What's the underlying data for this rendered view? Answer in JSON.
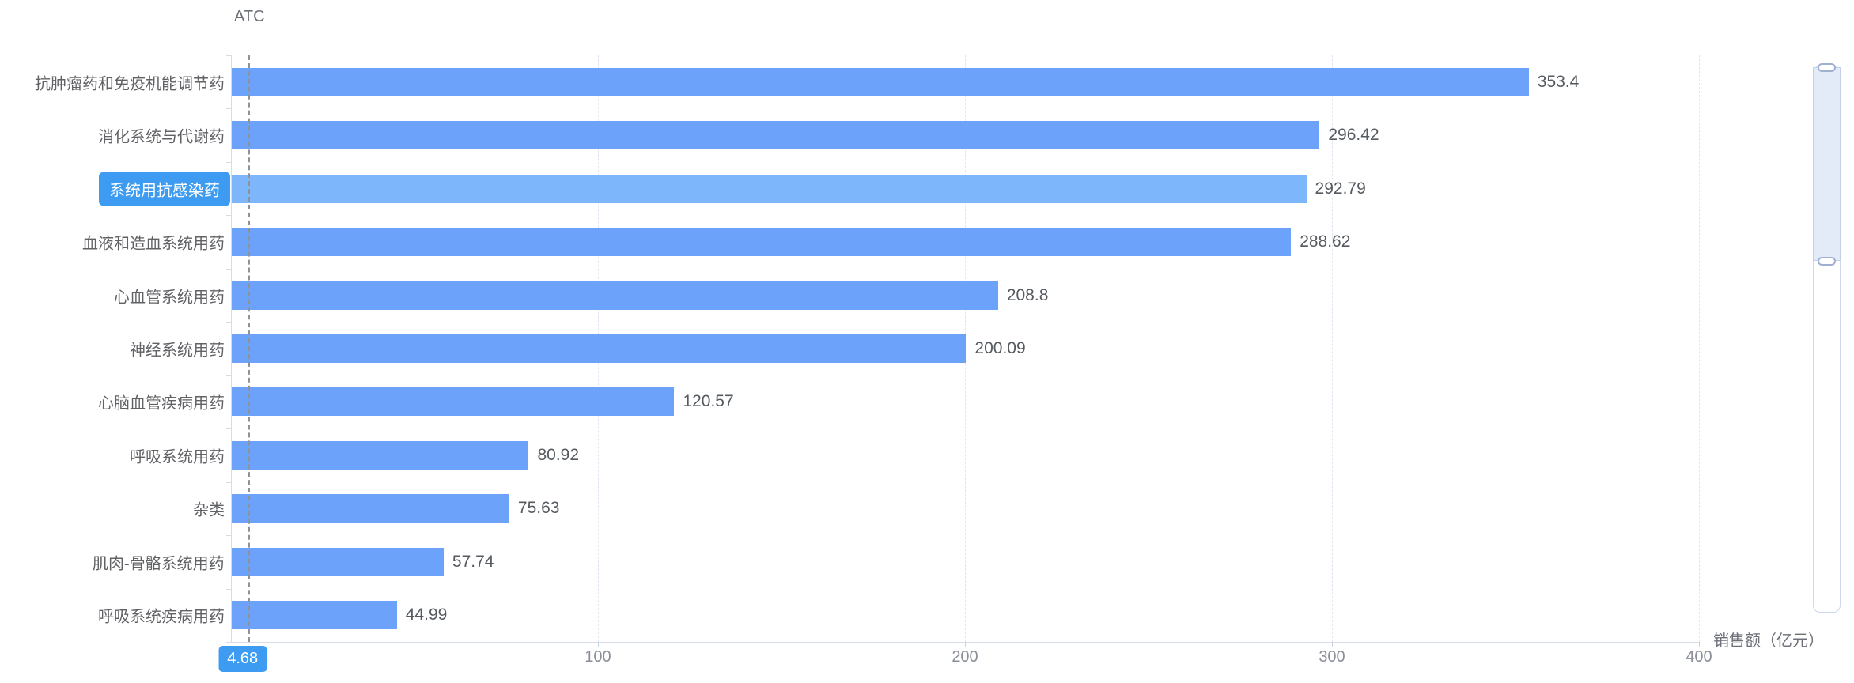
{
  "chart_data": {
    "type": "bar",
    "orientation": "horizontal",
    "title": "ATC",
    "xlabel": "销售额（亿元）",
    "categories": [
      "抗肿瘤药和免疫机能调节药",
      "消化系统与代谢药",
      "系统用抗感染药",
      "血液和造血系统用药",
      "心血管系统用药",
      "神经系统用药",
      "心脑血管疾病用药",
      "呼吸系统用药",
      "杂类",
      "肌肉-骨骼系统用药",
      "呼吸系统疾病用药"
    ],
    "values": [
      353.4,
      296.42,
      292.79,
      288.62,
      208.8,
      200.09,
      120.57,
      80.92,
      75.63,
      57.74,
      44.99
    ],
    "xlim": [
      0,
      400
    ],
    "xticks": [
      100,
      200,
      300,
      400
    ],
    "grid": "vertical-dashed",
    "legend": "none",
    "highlight_index": 2,
    "axis_pointer": {
      "value": 4.68,
      "label": "4.68",
      "category": "系统用抗感染药"
    },
    "colors": {
      "bar": "#6CA2FA",
      "bar_highlight": "#7EB6FC",
      "pointer_label_bg": "#3D9CF2",
      "pointer_line": "#8f9399",
      "gridline": "#dfe6f2",
      "axis_text": "#6E7079"
    }
  },
  "scrollbar": {
    "side": "right",
    "fill_color": "#E4EBF8"
  }
}
